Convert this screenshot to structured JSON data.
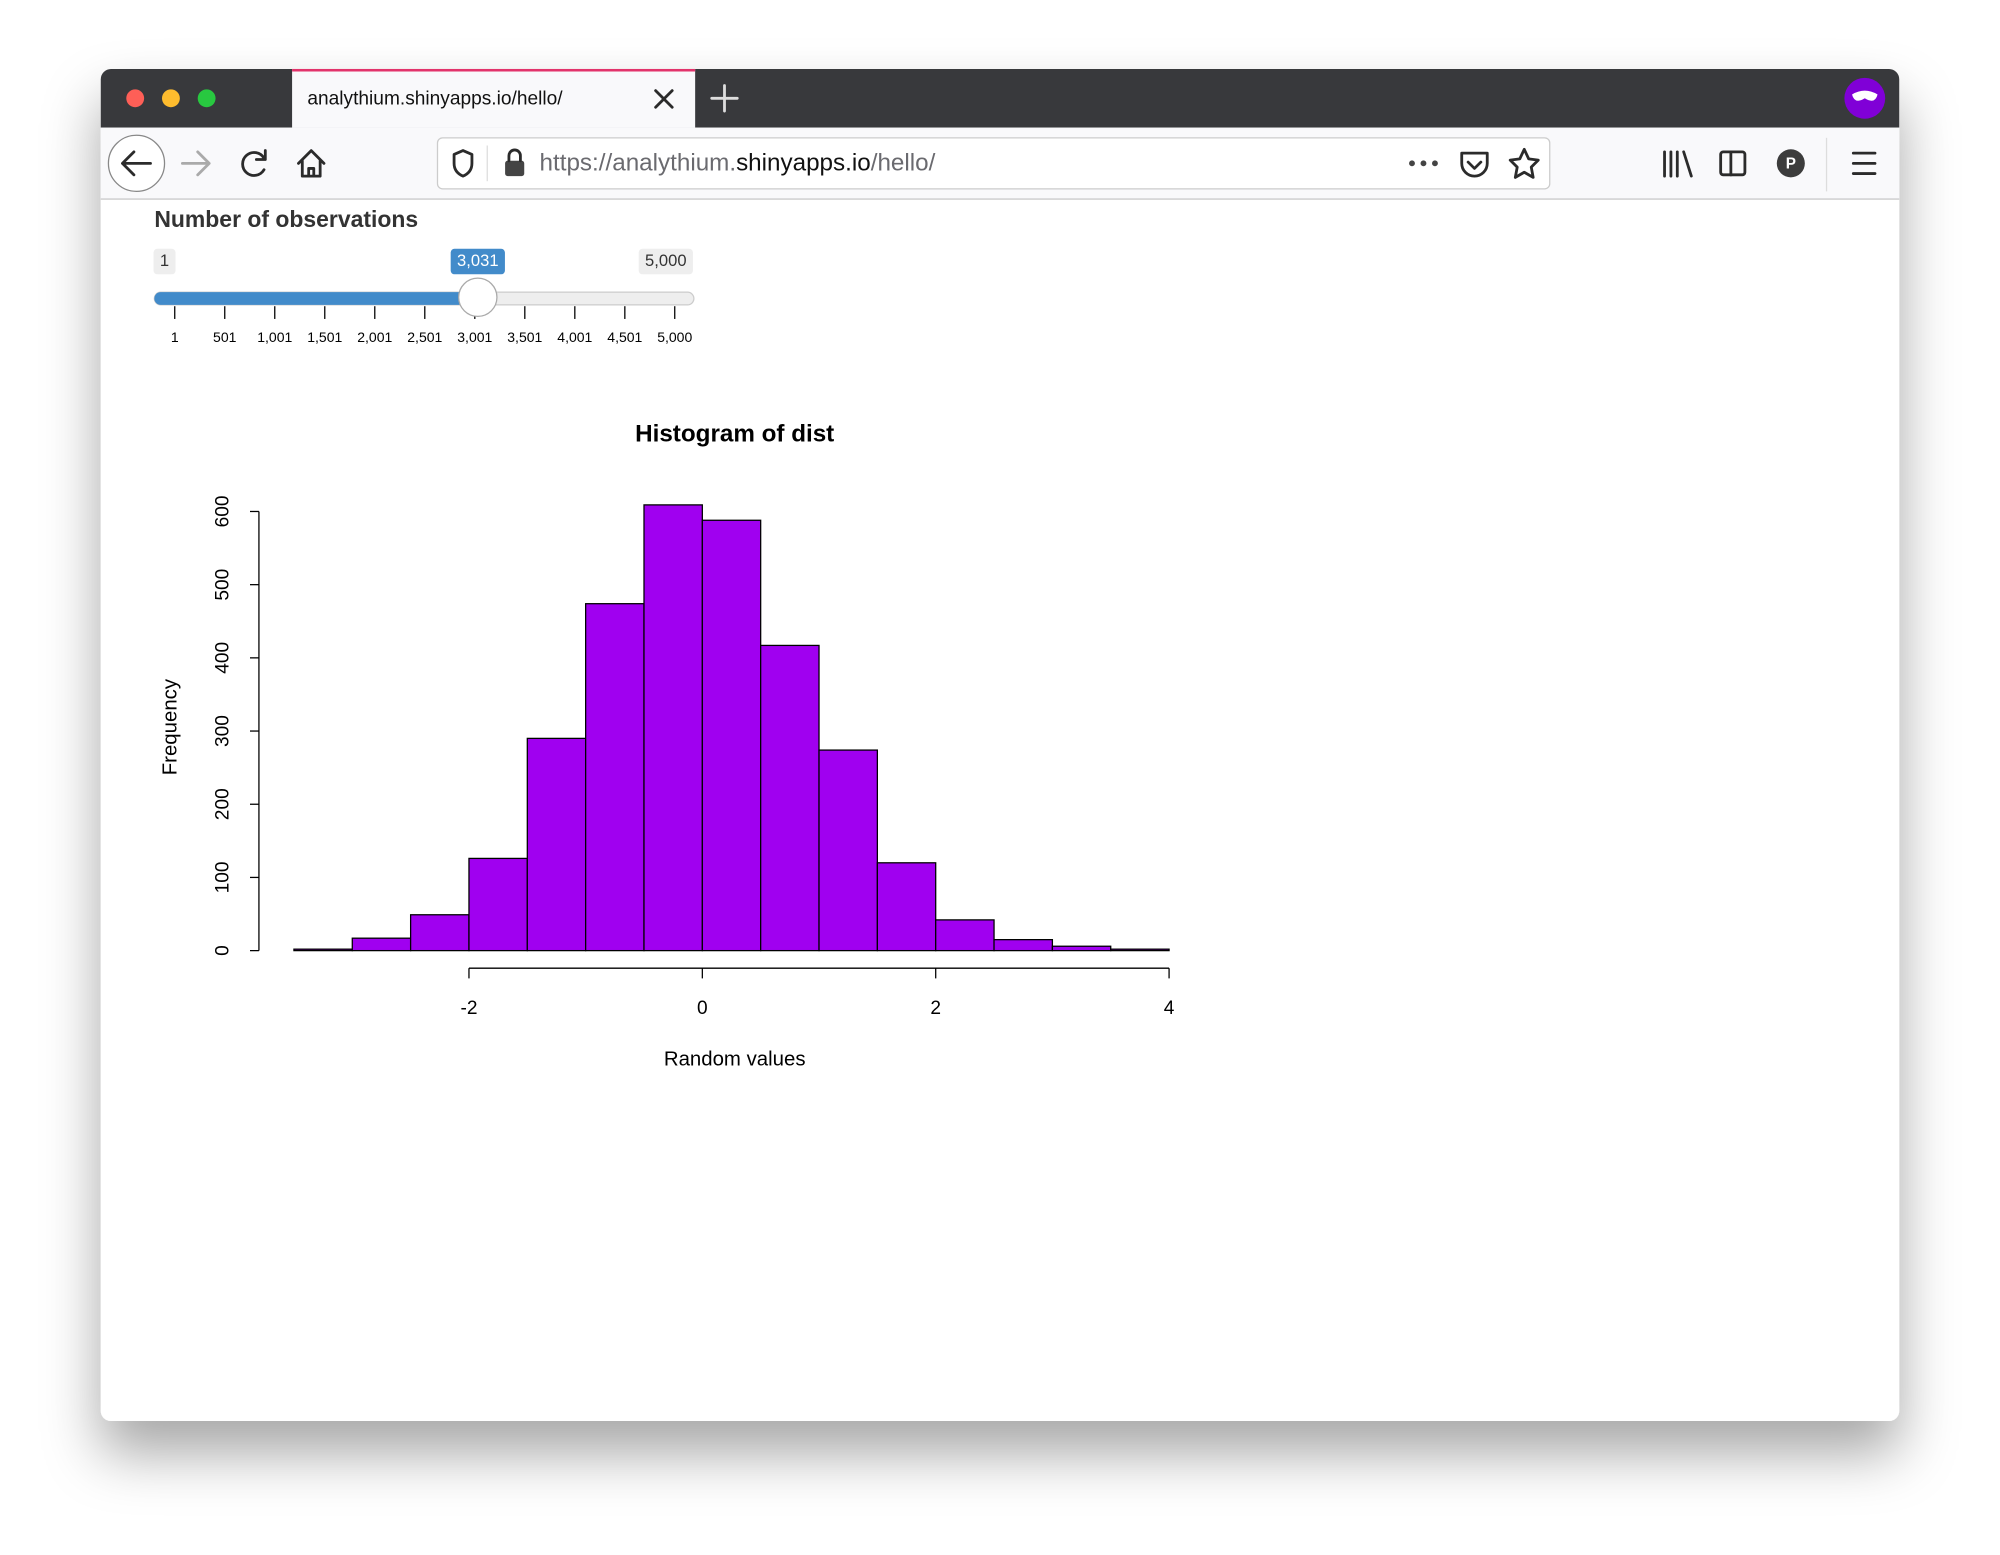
{
  "browser": {
    "tab_title": "analythium.shinyapps.io/hello/",
    "url": {
      "prefix": "https://analythium.",
      "domain": "shinyapps.io",
      "path": "/hello/"
    },
    "avatar": "P"
  },
  "slider": {
    "label": "Number of observations",
    "min": {
      "value": 1,
      "label": "1"
    },
    "max": {
      "value": 5000,
      "label": "5,000"
    },
    "value": {
      "value": 3031,
      "label": "3,031"
    },
    "color": "#428bca",
    "ticks": [
      1,
      501,
      {
        "value": 1001,
        "label": "1,001"
      },
      {
        "value": 1501,
        "label": "1,501"
      },
      {
        "value": 2001,
        "label": "2,001"
      },
      {
        "value": 2501,
        "label": "2,501"
      },
      {
        "value": 3001,
        "label": "3,001"
      },
      {
        "value": 3501,
        "label": "3,501"
      },
      {
        "value": 4001,
        "label": "4,001"
      },
      {
        "value": 4501,
        "label": "4,501"
      },
      {
        "value": 5000,
        "label": "5,000"
      }
    ]
  },
  "chart_data": {
    "type": "histogram",
    "title": "Histogram of dist",
    "x_label": "Random values",
    "y_label": "Frequency",
    "bins": [
      -3.5,
      -3,
      -2.5,
      -2,
      -1.5,
      -1,
      -0.5,
      0,
      0.5,
      1,
      1.5,
      2,
      2.5,
      3,
      3.5,
      4
    ],
    "values": [
      2,
      17,
      49,
      126,
      290,
      474,
      609,
      588,
      417,
      274,
      120,
      42,
      15,
      6,
      2
    ],
    "color": "#a000f0",
    "xlim": [
      -3.8,
      4.3
    ],
    "ylim": [
      -24,
      633
    ],
    "xticks": [
      -2,
      0,
      2,
      4
    ],
    "yticks": [
      0,
      100,
      200,
      300,
      400,
      500,
      600
    ]
  }
}
